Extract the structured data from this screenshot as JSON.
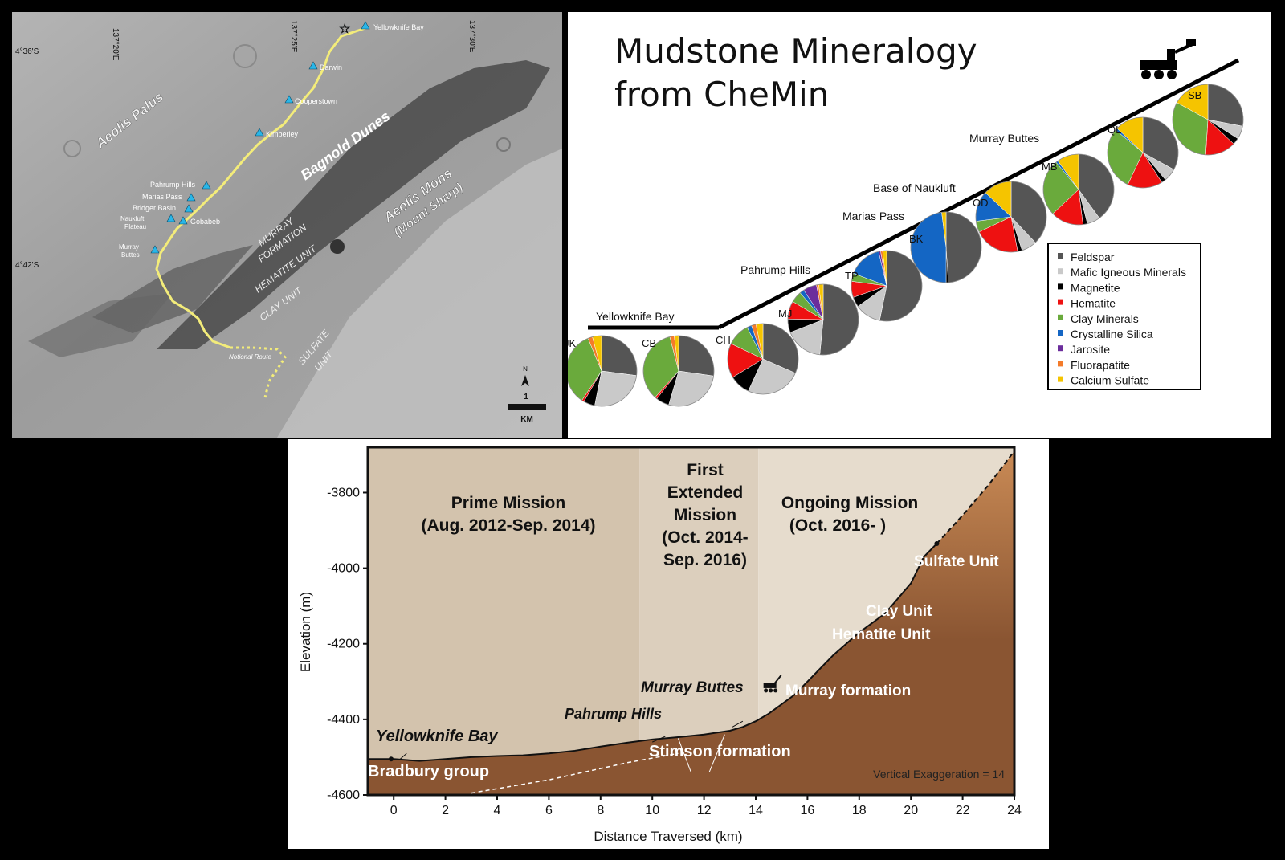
{
  "colors": {
    "feldspar": "#555555",
    "mafic": "#c9c9c9",
    "magnetite": "#000000",
    "hematite": "#ee1111",
    "clay": "#6aaa3c",
    "silica": "#1466c4",
    "jarosite": "#6b2d9c",
    "fluorapatite": "#f47b2a",
    "calcium_sulfate": "#f5c400",
    "route": "#f3ec7a",
    "waypoint": "#29b6e8",
    "plot_sky": "#d3c3ad",
    "ground_light": "#c98a55",
    "ground_dark": "#8a5532"
  },
  "map": {
    "lon_labels": [
      "137°20'E",
      "137°25'E",
      "137°30'E"
    ],
    "lat_labels": [
      "4°36'S",
      "4°42'S"
    ],
    "region_labels": {
      "aeolis_palus": "Aeolis Palus",
      "bagnold_dunes": "Bagnold Dunes",
      "aeolis_mons": "Aeolis Mons",
      "mount_sharp": "(Mount Sharp)",
      "murray_1": "MURRAY",
      "murray_2": "FORMATION",
      "hematite": "HEMATITE UNIT",
      "clay": "CLAY UNIT",
      "sulfate_1": "SULFATE",
      "sulfate_2": "UNIT",
      "notional_route": "Notional Route"
    },
    "waypoints": [
      {
        "id": "yellowknife_bay",
        "label": "Yellowknife Bay"
      },
      {
        "id": "darwin",
        "label": "Darwin"
      },
      {
        "id": "cooperstown",
        "label": "Cooperstown"
      },
      {
        "id": "kimberley",
        "label": "Kimberley"
      },
      {
        "id": "pahrump_hills",
        "label": "Pahrump Hills"
      },
      {
        "id": "marias_pass",
        "label": "Marias Pass"
      },
      {
        "id": "bridger_basin",
        "label": "Bridger Basin"
      },
      {
        "id": "naukluft_1",
        "label": "Naukluft"
      },
      {
        "id": "naukluft_2",
        "label": "Plateau"
      },
      {
        "id": "gobabeb",
        "label": "Gobabeb"
      },
      {
        "id": "murray_1",
        "label": "Murray"
      },
      {
        "id": "murray_2",
        "label": "Buttes"
      }
    ],
    "scale": {
      "north": "N",
      "value": "1",
      "unit": "KM"
    }
  },
  "mineralogy": {
    "title_line1": "Mudstone Mineralogy",
    "title_line2": "from CheMin",
    "group_labels": {
      "yellowknife": "Yellowknife Bay",
      "pahrump": "Pahrump Hills",
      "marias": "Marias Pass",
      "naukluft": "Base of Naukluft",
      "murray": "Murray Buttes"
    },
    "legend": [
      "Feldspar",
      "Mafic Igneous Minerals",
      "Magnetite",
      "Hematite",
      "Clay Minerals",
      "Crystalline Silica",
      "Jarosite",
      "Fluorapatite",
      "Calcium Sulfate"
    ]
  },
  "chart_data": [
    {
      "type": "pie",
      "title": "Mudstone Mineralogy from CheMin",
      "categories": [
        "Feldspar",
        "Mafic Igneous Minerals",
        "Magnetite",
        "Hematite",
        "Clay Minerals",
        "Crystalline Silica",
        "Jarosite",
        "Fluorapatite",
        "Calcium Sulfate"
      ],
      "samples": [
        {
          "name": "JK",
          "values": [
            26,
            25,
            5,
            1,
            33,
            0,
            0,
            2,
            4
          ]
        },
        {
          "name": "CB",
          "values": [
            27,
            27,
            6,
            1,
            34,
            0,
            0,
            2,
            2
          ]
        },
        {
          "name": "CH",
          "values": [
            30,
            24,
            9,
            15,
            10,
            2,
            0,
            2,
            3
          ]
        },
        {
          "name": "MJ",
          "values": [
            50,
            17,
            6,
            8,
            5,
            2,
            6,
            1,
            2
          ]
        },
        {
          "name": "TP",
          "values": [
            58,
            13,
            5,
            8,
            4,
            17,
            1,
            1,
            2
          ]
        },
        {
          "name": "BK",
          "values": [
            49,
            0,
            1,
            0,
            0,
            48,
            0,
            0,
            2
          ]
        },
        {
          "name": "OD",
          "values": [
            38,
            7,
            2,
            21,
            5,
            14,
            0,
            0,
            13
          ]
        },
        {
          "name": "MB",
          "values": [
            40,
            6,
            2,
            15,
            26,
            1,
            0,
            0,
            10
          ]
        },
        {
          "name": "QL",
          "values": [
            33,
            6,
            2,
            16,
            29,
            1,
            0,
            0,
            13
          ]
        },
        {
          "name": "SB",
          "values": [
            28,
            6,
            3,
            14,
            32,
            0,
            0,
            0,
            17
          ]
        }
      ],
      "legend_position": "bottom-right"
    },
    {
      "type": "area",
      "xlabel": "Distance Traversed (km)",
      "ylabel": "Elevation (m)",
      "xlim": [
        -1,
        24
      ],
      "ylim": [
        -4600,
        -3680
      ],
      "xticks": [
        0,
        2,
        4,
        6,
        8,
        10,
        12,
        14,
        16,
        18,
        20,
        22,
        24
      ],
      "yticks": [
        -3800,
        -4000,
        -4200,
        -4400,
        -4600
      ],
      "profile": {
        "x": [
          -1,
          0,
          1,
          2,
          3,
          4,
          5,
          6,
          7,
          8,
          9,
          10,
          11,
          12,
          13,
          13.5,
          14,
          14.5,
          15,
          15.5,
          16,
          17,
          18,
          19,
          20,
          20.5,
          21,
          22,
          23,
          24
        ],
        "y": [
          -4505,
          -4505,
          -4510,
          -4505,
          -4500,
          -4497,
          -4495,
          -4490,
          -4483,
          -4472,
          -4462,
          -4453,
          -4447,
          -4440,
          -4430,
          -4420,
          -4405,
          -4385,
          -4360,
          -4335,
          -4300,
          -4230,
          -4170,
          -4120,
          -4040,
          -3970,
          -3935,
          -3860,
          -3780,
          -3690
        ]
      },
      "projected_from_x": 21,
      "phases": [
        {
          "name": "Prime Mission (Aug. 2012-Sep. 2014)",
          "x_start": -1,
          "x_end": 9.5
        },
        {
          "name": "First Extended Mission (Oct. 2014-Sep. 2016)",
          "x_start": 9.5,
          "x_end": 14.1
        },
        {
          "name": "Ongoing Mission (Oct. 2016- )",
          "x_start": 14.1,
          "x_end": 24
        }
      ],
      "labels": {
        "prime_1": "Prime Mission",
        "prime_2": "(Aug. 2012-Sep. 2014)",
        "first_1": "First",
        "first_2": "Extended",
        "first_3": "Mission",
        "first_4": "(Oct. 2014-",
        "first_5": "Sep. 2016)",
        "ongoing_1": "Ongoing Mission",
        "ongoing_2": "(Oct. 2016- )",
        "yellowknife": "Yellowknife Bay",
        "pahrump": "Pahrump Hills",
        "murray_buttes": "Murray Buttes",
        "bradbury": "Bradbury group",
        "stimson": "Stimson formation",
        "murray_fm": "Murray formation",
        "hematite": "Hematite Unit",
        "clay": "Clay Unit",
        "sulfate": "Sulfate Unit",
        "exaggeration": "Vertical Exaggeration = 14"
      }
    }
  ]
}
